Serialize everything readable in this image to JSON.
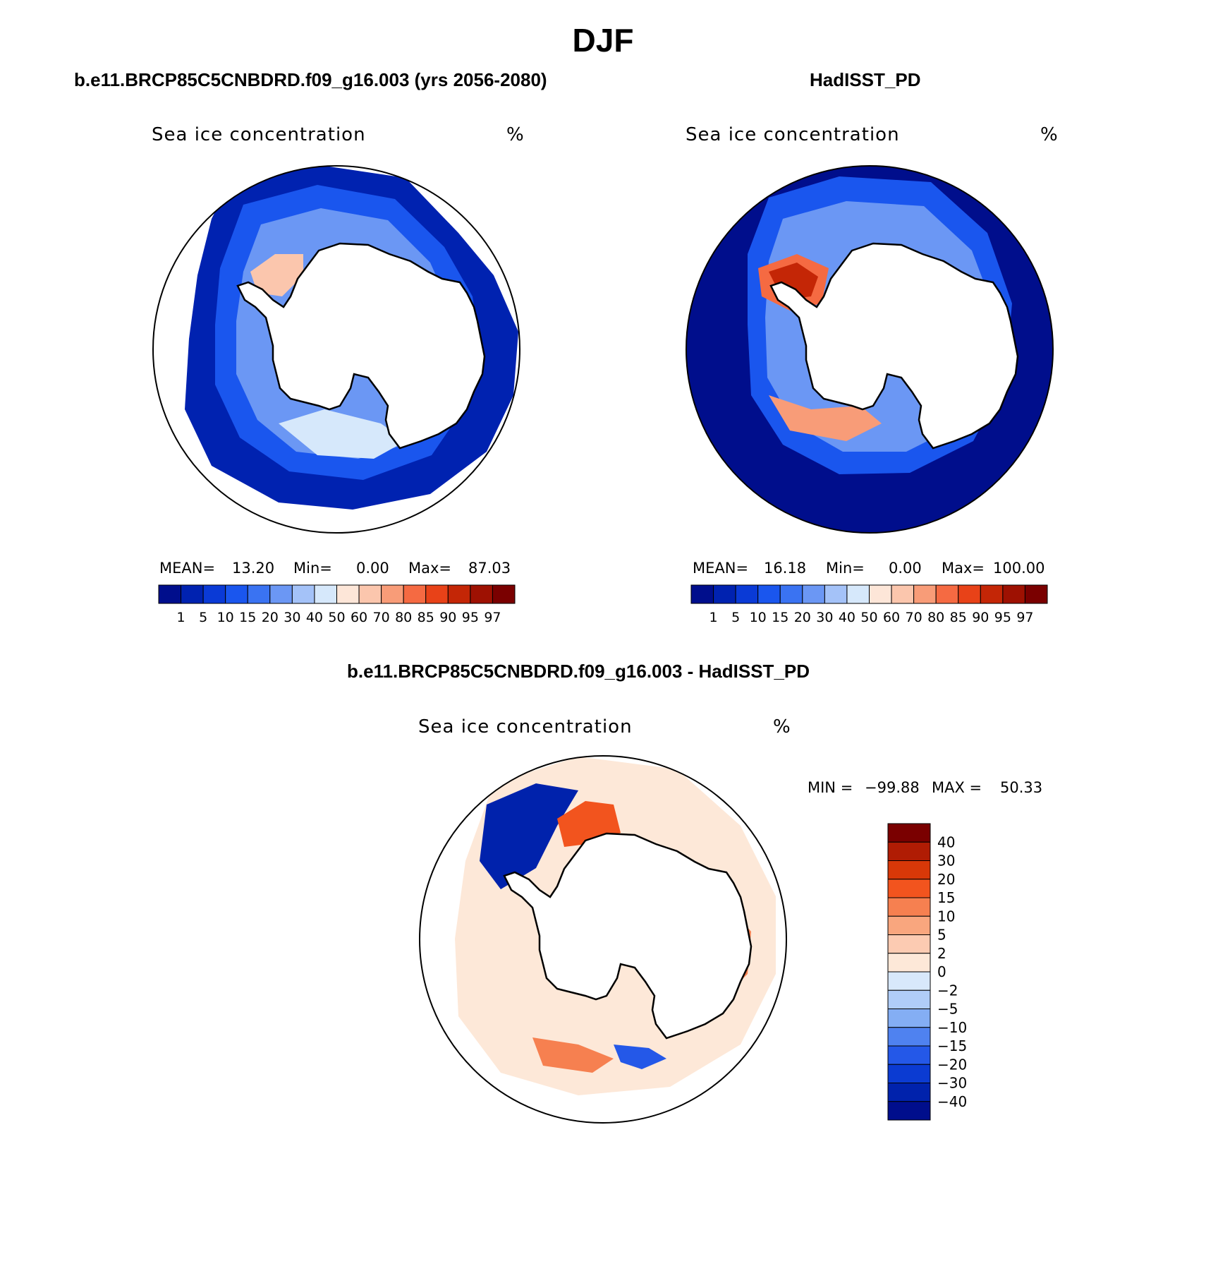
{
  "title": "DJF",
  "panels": [
    {
      "title": "b.e11.BRCP85C5CNBDRD.f09_g16.003 (yrs 2056-2080)",
      "variable": "Sea ice concentration",
      "units": "%",
      "stats": {
        "mean_label": "MEAN=",
        "mean": "13.20",
        "min_label": "Min=",
        "min": "0.00",
        "max_label": "Max=",
        "max": "87.03"
      }
    },
    {
      "title": "HadISST_PD",
      "variable": "Sea ice concentration",
      "units": "%",
      "stats": {
        "mean_label": "MEAN=",
        "mean": "16.18",
        "min_label": "Min=",
        "min": "0.00",
        "max_label": "Max=",
        "max": "100.00"
      }
    },
    {
      "title": "b.e11.BRCP85C5CNBDRD.f09_g16.003 - HadISST_PD",
      "variable": "Sea ice concentration",
      "units": "%",
      "stats": {
        "min_label": "MIN =",
        "min": "−99.88",
        "max_label": "MAX =",
        "max": "50.33"
      }
    }
  ],
  "colorbar_conc": {
    "levels": [
      "1",
      "5",
      "10",
      "15",
      "20",
      "30",
      "40",
      "50",
      "60",
      "70",
      "80",
      "85",
      "90",
      "95",
      "97"
    ],
    "colors": [
      "#000e8c",
      "#0022b0",
      "#0a3ad6",
      "#1a56ee",
      "#3a73f2",
      "#6b97f4",
      "#a4c2f8",
      "#d6e8fb",
      "#fde6d8",
      "#fbc6ad",
      "#f89c78",
      "#f56a42",
      "#e84218",
      "#c42606",
      "#9e1102",
      "#7a0000"
    ]
  },
  "colorbar_diff": {
    "levels": [
      "40",
      "30",
      "20",
      "15",
      "10",
      "5",
      "2",
      "0",
      "−2",
      "−5",
      "−10",
      "−15",
      "−20",
      "−30",
      "−40"
    ],
    "colors": [
      "#7a0000",
      "#b01c04",
      "#d83808",
      "#f2541e",
      "#f68050",
      "#f9a67e",
      "#fccbb2",
      "#fde8d8",
      "#d8e8fb",
      "#b0cdf8",
      "#84aef4",
      "#4f82f0",
      "#2458e8",
      "#0b3bd2",
      "#0022ac",
      "#000e8c"
    ]
  }
}
